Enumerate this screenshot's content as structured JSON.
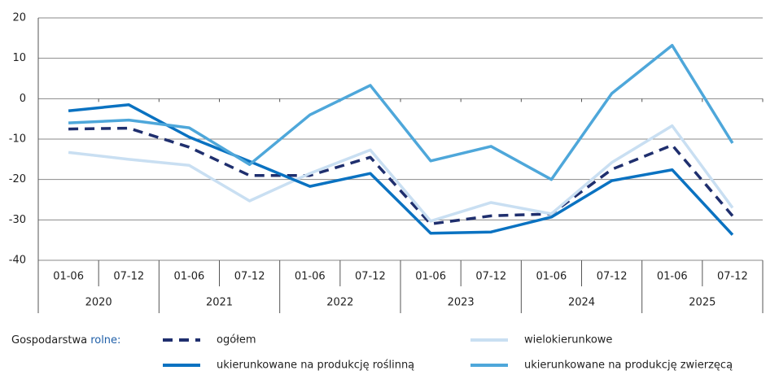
{
  "chart_data": {
    "type": "line",
    "categories": [
      "01-06",
      "07-12",
      "01-06",
      "07-12",
      "01-06",
      "07-12",
      "01-06",
      "07-12",
      "01-06",
      "07-12",
      "01-06",
      "07-12"
    ],
    "x_groups": [
      "2020",
      "2021",
      "2022",
      "2023",
      "2024",
      "2025"
    ],
    "series": [
      {
        "name": "ogółem",
        "color": "#1f2f6e",
        "dash": true,
        "values": [
          -7.5,
          -7.3,
          -12,
          -19,
          -19,
          -14.5,
          -31,
          -29,
          -28.5,
          -17.5,
          -11.5,
          -29
        ]
      },
      {
        "name": "wielokierunkowe",
        "color": "#c9dff2",
        "values": [
          -13.3,
          -15,
          -16.5,
          -25.3,
          -18.5,
          -12.7,
          -30.3,
          -25.7,
          -28.5,
          -15.8,
          -6.7,
          -27
        ]
      },
      {
        "name": "ukierunkowane na produkcję roślinną",
        "color": "#0a72c1",
        "values": [
          -3,
          -1.5,
          -9.5,
          -15.5,
          -21.7,
          -18.5,
          -33.3,
          -33,
          -29.3,
          -20.3,
          -17.6,
          -33.7
        ]
      },
      {
        "name": "ukierunkowane na produkcję zwierzęcą",
        "color": "#4ea7da",
        "values": [
          -6,
          -5.3,
          -7.2,
          -16.3,
          -4,
          3.3,
          -15.4,
          -11.8,
          -20,
          1.3,
          13.2,
          -11
        ]
      }
    ],
    "legend_title": [
      "Gospodarstwa",
      "rolne:"
    ],
    "ylim": [
      -40,
      20
    ],
    "yticks": [
      -40,
      -30,
      -20,
      -10,
      0,
      10,
      20
    ],
    "grid": true
  }
}
